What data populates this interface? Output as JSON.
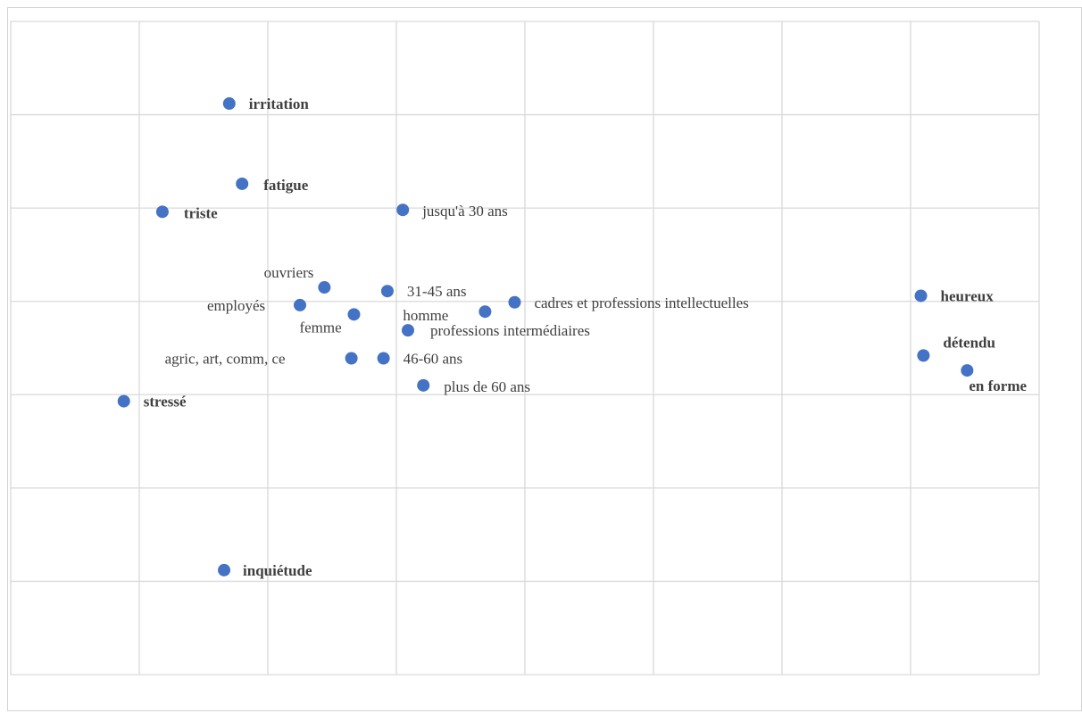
{
  "chart_data": {
    "type": "scatter",
    "title": "",
    "xlabel": "",
    "ylabel": "",
    "grid": true,
    "legend": "none",
    "marker_color": "#4472c4",
    "xlim": [
      0,
      8
    ],
    "ylim": [
      0,
      7
    ],
    "points": [
      {
        "label": "irritation",
        "x": 1.7,
        "y": 6.12,
        "style": "bold"
      },
      {
        "label": "fatigue",
        "x": 1.8,
        "y": 5.26,
        "style": "bold"
      },
      {
        "label": "triste",
        "x": 1.18,
        "y": 4.96,
        "style": "bold"
      },
      {
        "label": "jusqu'à 30 ans",
        "x": 3.05,
        "y": 4.98,
        "style": "normal"
      },
      {
        "label": "ouvriers",
        "x": 2.44,
        "y": 4.15,
        "style": "normal"
      },
      {
        "label": "employés",
        "x": 2.25,
        "y": 3.96,
        "style": "normal"
      },
      {
        "label": "femme",
        "x": 2.67,
        "y": 3.86,
        "style": "normal"
      },
      {
        "label": "31-45 ans",
        "x": 2.93,
        "y": 4.11,
        "style": "normal"
      },
      {
        "label": "homme",
        "x": 3.69,
        "y": 3.89,
        "style": "normal"
      },
      {
        "label": "cadres et professions intellectuelles",
        "x": 3.92,
        "y": 3.99,
        "style": "normal"
      },
      {
        "label": "professions intermédiaires",
        "x": 3.09,
        "y": 3.69,
        "style": "normal"
      },
      {
        "label": "agric, art, comm, ce",
        "x": 2.65,
        "y": 3.39,
        "style": "normal"
      },
      {
        "label": "46-60 ans",
        "x": 2.9,
        "y": 3.39,
        "style": "normal"
      },
      {
        "label": "plus de 60 ans",
        "x": 3.21,
        "y": 3.1,
        "style": "normal"
      },
      {
        "label": "heureux",
        "x": 7.08,
        "y": 4.06,
        "style": "bold"
      },
      {
        "label": "détendu",
        "x": 7.1,
        "y": 3.42,
        "style": "bold"
      },
      {
        "label": "en forme",
        "x": 7.44,
        "y": 3.26,
        "style": "bold"
      },
      {
        "label": "stressé",
        "x": 0.88,
        "y": 2.93,
        "style": "bold"
      },
      {
        "label": "inquiétude",
        "x": 1.66,
        "y": 1.12,
        "style": "bold"
      }
    ]
  }
}
